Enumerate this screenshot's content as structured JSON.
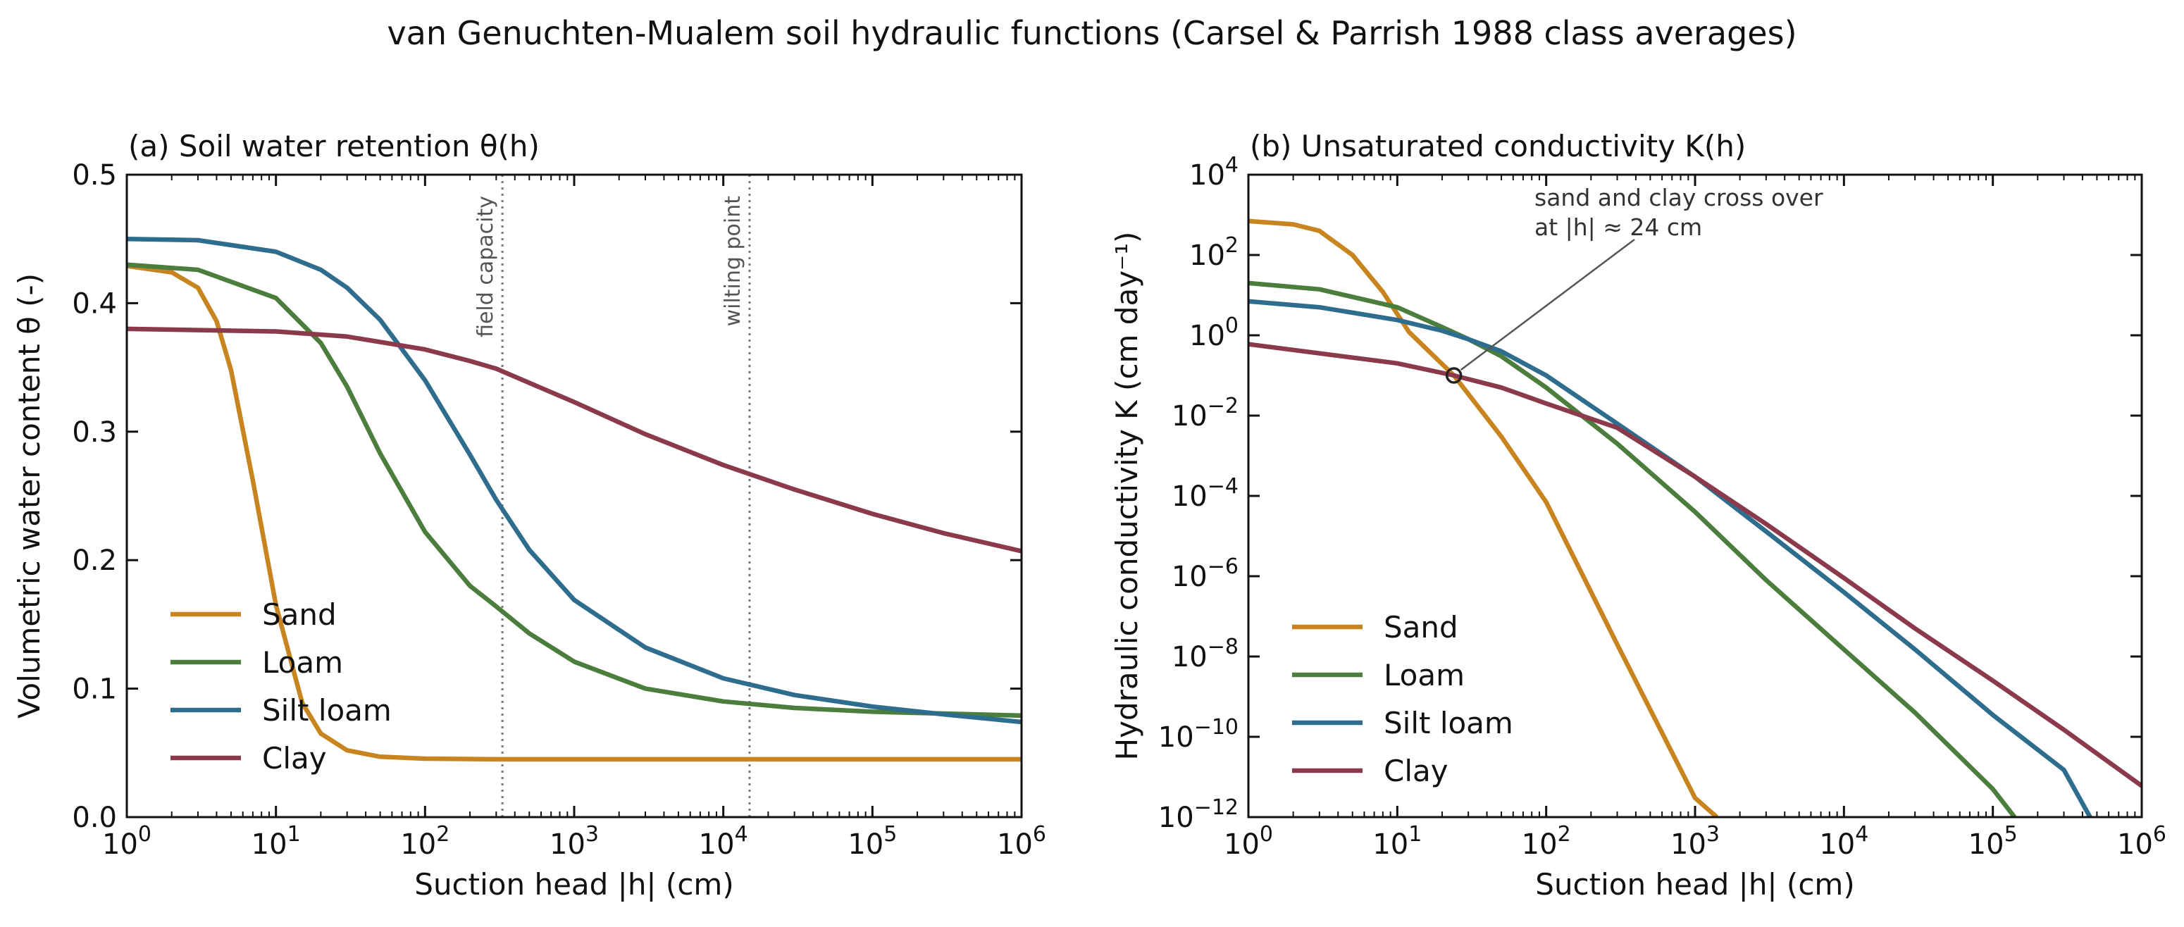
{
  "figure": {
    "suptitle": "van Genuchten-Mualem soil hydraulic functions (Carsel & Parrish 1988 class averages)"
  },
  "colors": {
    "Sand": "#c8841f",
    "Loam": "#4b7d3c",
    "Silt loam": "#2f6d8e",
    "Clay": "#8b3a4c"
  },
  "chart_data": [
    {
      "type": "line",
      "title": "(a) Soil water retention  θ(h)",
      "xlabel": "Suction head  |h|  (cm)",
      "ylabel": "Volumetric water content  θ  (-)",
      "xscale": "log",
      "xlim": [
        1,
        1000000
      ],
      "ylim": [
        0,
        0.5
      ],
      "xticks": [
        "10^0",
        "10^1",
        "10^2",
        "10^3",
        "10^4",
        "10^5",
        "10^6"
      ],
      "yticks": [
        "0.0",
        "0.1",
        "0.2",
        "0.3",
        "0.4",
        "0.5"
      ],
      "grid": false,
      "legend": "lower-left",
      "vlines": [
        {
          "label": "field capacity",
          "x": 330
        },
        {
          "label": "wilting point",
          "x": 15000
        }
      ],
      "series": [
        {
          "name": "Sand",
          "x": [
            1,
            2,
            3,
            4,
            5,
            7,
            10,
            15,
            20,
            30,
            50,
            100,
            300,
            1000000
          ],
          "y": [
            0.429,
            0.424,
            0.412,
            0.386,
            0.348,
            0.262,
            0.165,
            0.089,
            0.065,
            0.052,
            0.047,
            0.0455,
            0.045,
            0.045
          ]
        },
        {
          "name": "Loam",
          "x": [
            1,
            3,
            10,
            20,
            30,
            50,
            100,
            200,
            300,
            500,
            1000,
            3000,
            10000,
            30000,
            100000,
            1000000
          ],
          "y": [
            0.43,
            0.426,
            0.404,
            0.369,
            0.335,
            0.283,
            0.222,
            0.18,
            0.164,
            0.143,
            0.121,
            0.1,
            0.09,
            0.085,
            0.082,
            0.079
          ]
        },
        {
          "name": "Silt loam",
          "x": [
            1,
            3,
            10,
            20,
            30,
            50,
            100,
            200,
            300,
            500,
            1000,
            3000,
            10000,
            30000,
            100000,
            300000,
            1000000
          ],
          "y": [
            0.45,
            0.449,
            0.44,
            0.426,
            0.412,
            0.387,
            0.34,
            0.282,
            0.247,
            0.208,
            0.169,
            0.132,
            0.108,
            0.095,
            0.086,
            0.08,
            0.074
          ]
        },
        {
          "name": "Clay",
          "x": [
            1,
            10,
            30,
            100,
            200,
            300,
            1000,
            3000,
            10000,
            30000,
            100000,
            300000,
            1000000
          ],
          "y": [
            0.38,
            0.378,
            0.374,
            0.364,
            0.355,
            0.349,
            0.323,
            0.298,
            0.274,
            0.255,
            0.236,
            0.221,
            0.207
          ]
        }
      ]
    },
    {
      "type": "line",
      "title": "(b) Unsaturated conductivity  K(h)",
      "xlabel": "Suction head  |h|  (cm)",
      "ylabel": "Hydraulic conductivity  K  (cm day⁻¹)",
      "xscale": "log",
      "yscale": "log",
      "xlim": [
        1,
        1000000
      ],
      "ylim": [
        1e-12,
        10000
      ],
      "xticks": [
        "10^0",
        "10^1",
        "10^2",
        "10^3",
        "10^4",
        "10^5",
        "10^6"
      ],
      "yticks": [
        "10^-12",
        "10^-10",
        "10^-8",
        "10^-6",
        "10^-4",
        "10^-2",
        "10^0",
        "10^2",
        "10^4"
      ],
      "grid": false,
      "legend": "lower-left",
      "annotation": {
        "text_line1": "sand and clay cross over",
        "text_line2": "at |h| ≈ 24 cm",
        "x": 24,
        "y": 0.1
      },
      "series": [
        {
          "name": "Sand",
          "x": [
            1,
            2,
            3,
            5,
            8,
            12,
            24,
            50,
            100,
            300,
            1000,
            1400
          ],
          "y": [
            700,
            580,
            400,
            100,
            12,
            1.2,
            0.1,
            0.003,
            7e-05,
            2e-08,
            3e-12,
            1e-12
          ]
        },
        {
          "name": "Loam",
          "x": [
            1,
            3,
            10,
            20,
            30,
            50,
            100,
            300,
            1000,
            3000,
            10000,
            30000,
            100000,
            140000
          ],
          "y": [
            20,
            14,
            5,
            1.6,
            0.8,
            0.3,
            0.05,
            0.002,
            4e-05,
            8e-07,
            1.5e-08,
            4e-10,
            5e-12,
            1e-12
          ]
        },
        {
          "name": "Silt loam",
          "x": [
            1,
            3,
            10,
            20,
            30,
            50,
            100,
            300,
            1000,
            3000,
            10000,
            30000,
            100000,
            300000,
            450000
          ],
          "y": [
            7,
            5,
            2.4,
            1.3,
            0.8,
            0.4,
            0.1,
            0.0063,
            0.0003,
            1.3e-05,
            4e-07,
            1.5e-08,
            3.5e-10,
            1.5e-11,
            1e-12
          ]
        },
        {
          "name": "Clay",
          "x": [
            1,
            10,
            24,
            50,
            100,
            300,
            1000,
            3000,
            10000,
            30000,
            100000,
            300000,
            1000000
          ],
          "y": [
            0.6,
            0.2,
            0.1,
            0.05,
            0.02,
            0.005,
            0.0003,
            2e-05,
            9e-07,
            5e-08,
            2.5e-09,
            1.5e-10,
            6e-12
          ]
        }
      ]
    }
  ]
}
